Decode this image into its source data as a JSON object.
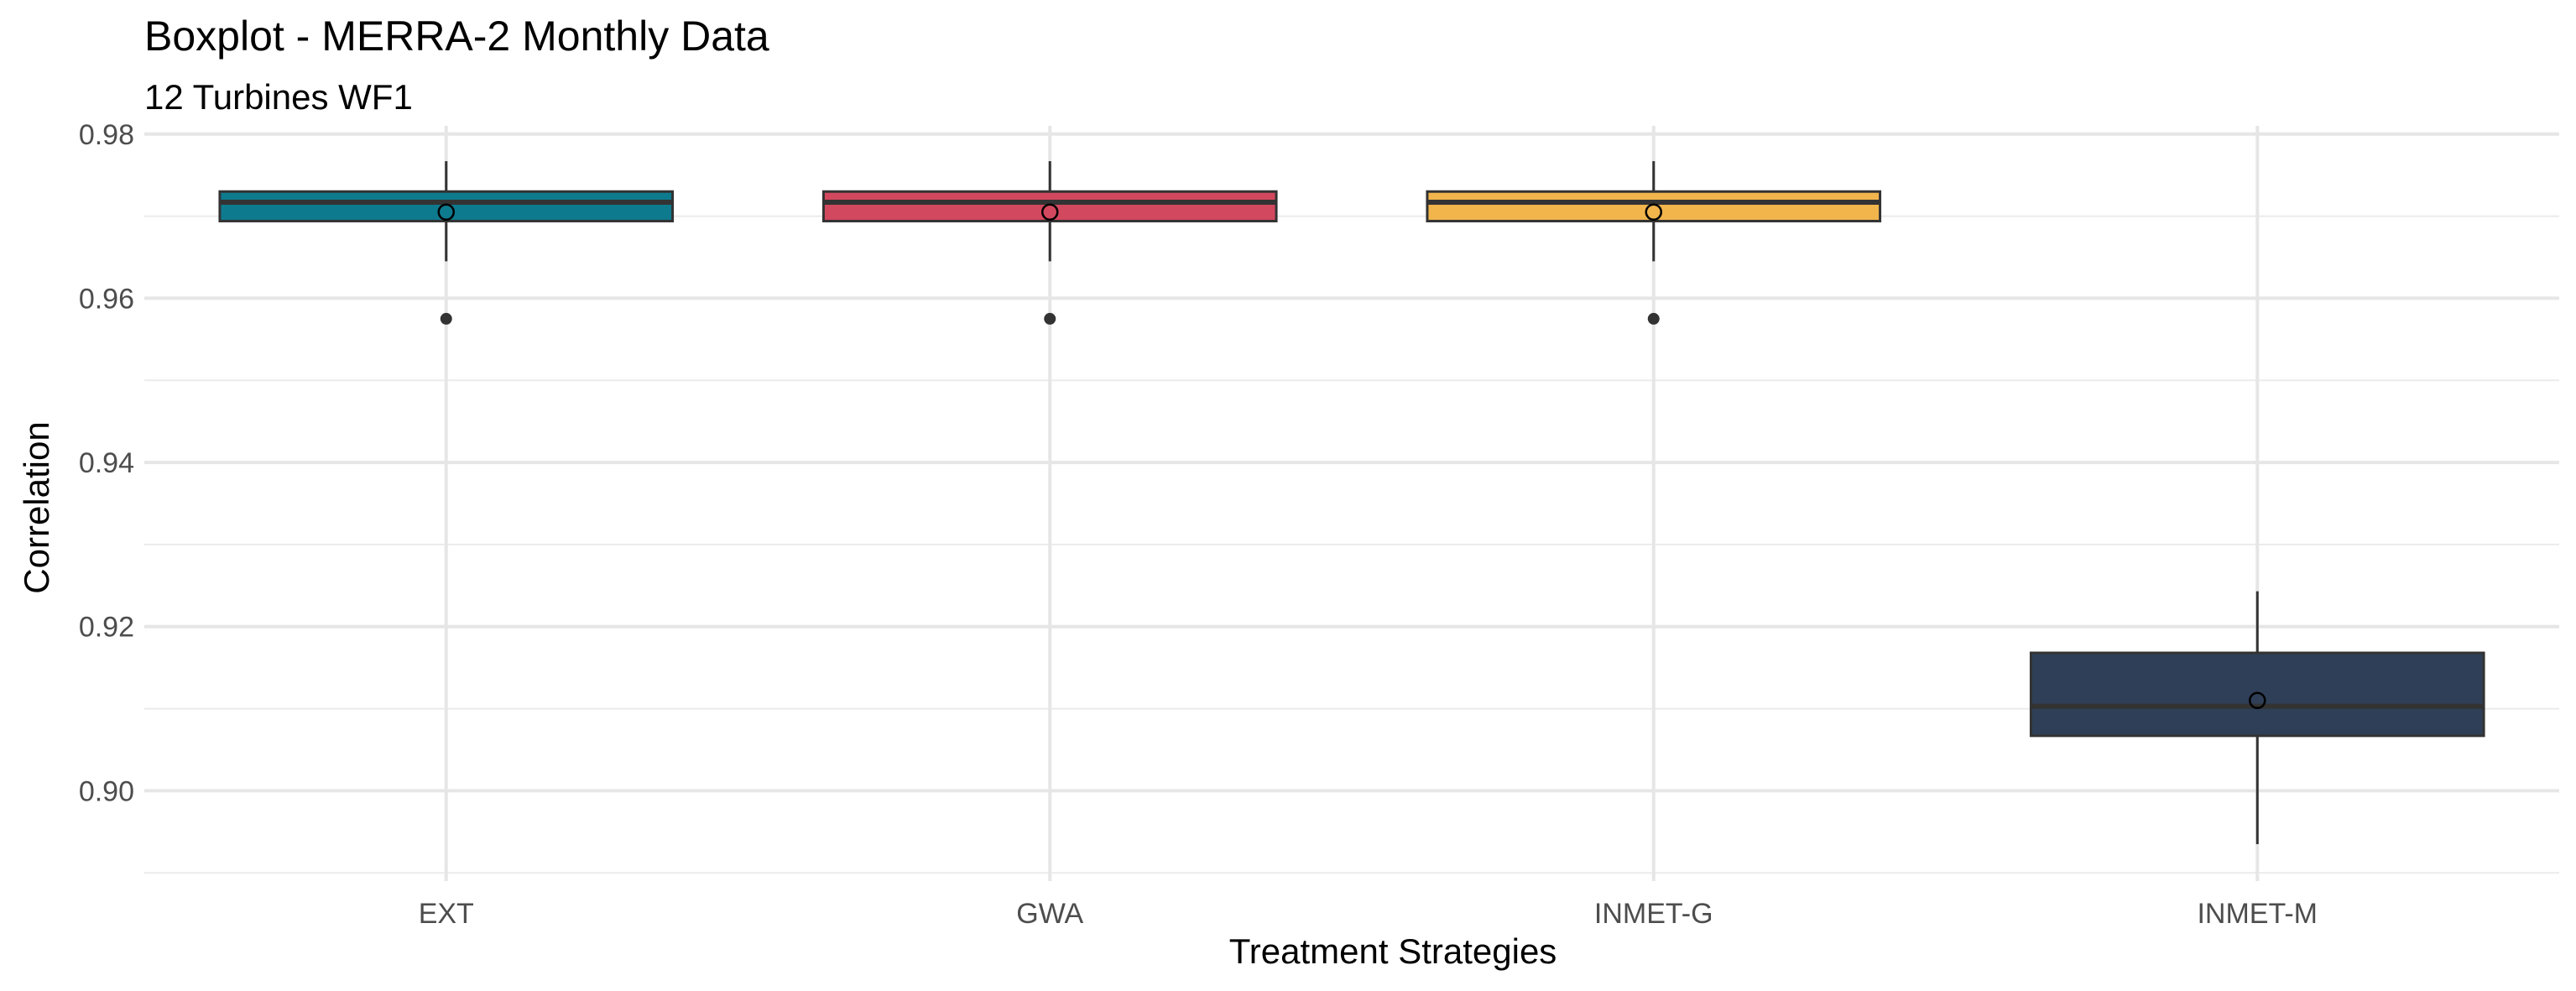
{
  "chart_data": {
    "type": "boxplot",
    "title": "Boxplot - MERRA-2 Monthly Data",
    "subtitle": "12 Turbines WF1",
    "xlabel": "Treatment Strategies",
    "ylabel": "Correlation",
    "ylim": [
      0.889,
      0.981
    ],
    "yticks": [
      "0.90",
      "0.92",
      "0.94",
      "0.96",
      "0.98"
    ],
    "categories": [
      "EXT",
      "GWA",
      "INMET-G",
      "INMET-M"
    ],
    "grid": true,
    "legend": "none",
    "boxes": [
      {
        "category": "EXT",
        "color": "#0E7A8E",
        "whisker_low": 0.9645,
        "q1": 0.9694,
        "median": 0.9717,
        "q3": 0.973,
        "whisker_high": 0.9767,
        "mean": 0.9705,
        "outliers": [
          0.9575
        ]
      },
      {
        "category": "GWA",
        "color": "#D2485E",
        "whisker_low": 0.9645,
        "q1": 0.9694,
        "median": 0.9717,
        "q3": 0.973,
        "whisker_high": 0.9767,
        "mean": 0.9705,
        "outliers": [
          0.9575
        ]
      },
      {
        "category": "INMET-G",
        "color": "#F1B54C",
        "whisker_low": 0.9645,
        "q1": 0.9694,
        "median": 0.9717,
        "q3": 0.973,
        "whisker_high": 0.9767,
        "mean": 0.9705,
        "outliers": [
          0.9575
        ]
      },
      {
        "category": "INMET-M",
        "color": "#2E3F57",
        "whisker_low": 0.8935,
        "q1": 0.9067,
        "median": 0.9103,
        "q3": 0.9168,
        "whisker_high": 0.9243,
        "mean": 0.911,
        "outliers": []
      }
    ]
  }
}
